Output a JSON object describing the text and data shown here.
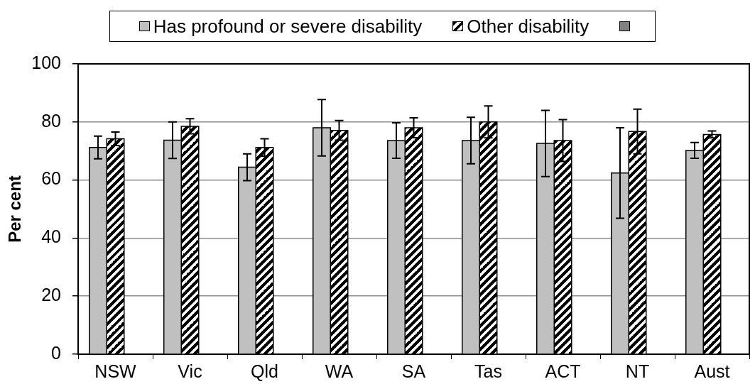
{
  "chart_data": {
    "type": "bar",
    "categories": [
      "NSW",
      "Vic",
      "Qld",
      "WA",
      "SA",
      "Tas",
      "ACT",
      "NT",
      "Aust"
    ],
    "ylabel": "Per cent",
    "ylim": [
      0,
      100
    ],
    "yticks": [
      0,
      20,
      40,
      60,
      80,
      100
    ],
    "grid": "y",
    "legend": "top",
    "series": [
      {
        "name": "Has profound or severe disability",
        "color": "#c0c0c0",
        "values": [
          71.2,
          73.7,
          64.4,
          78.0,
          73.6,
          73.6,
          72.6,
          62.4,
          70.2
        ],
        "errors": [
          3.9,
          6.3,
          4.6,
          9.7,
          6.1,
          8.0,
          11.4,
          15.6,
          2.7
        ]
      },
      {
        "name": "Other disability",
        "color": "#000000",
        "values": [
          74.2,
          78.5,
          71.2,
          77.1,
          78.0,
          80.0,
          73.6,
          76.7,
          75.7
        ],
        "errors": [
          2.3,
          2.6,
          3.0,
          3.4,
          3.4,
          5.5,
          7.2,
          7.7,
          1.2
        ]
      },
      {
        "color": "#808080",
        "values": [
          null,
          null,
          null,
          null,
          null,
          null,
          null,
          null,
          null
        ]
      }
    ]
  }
}
